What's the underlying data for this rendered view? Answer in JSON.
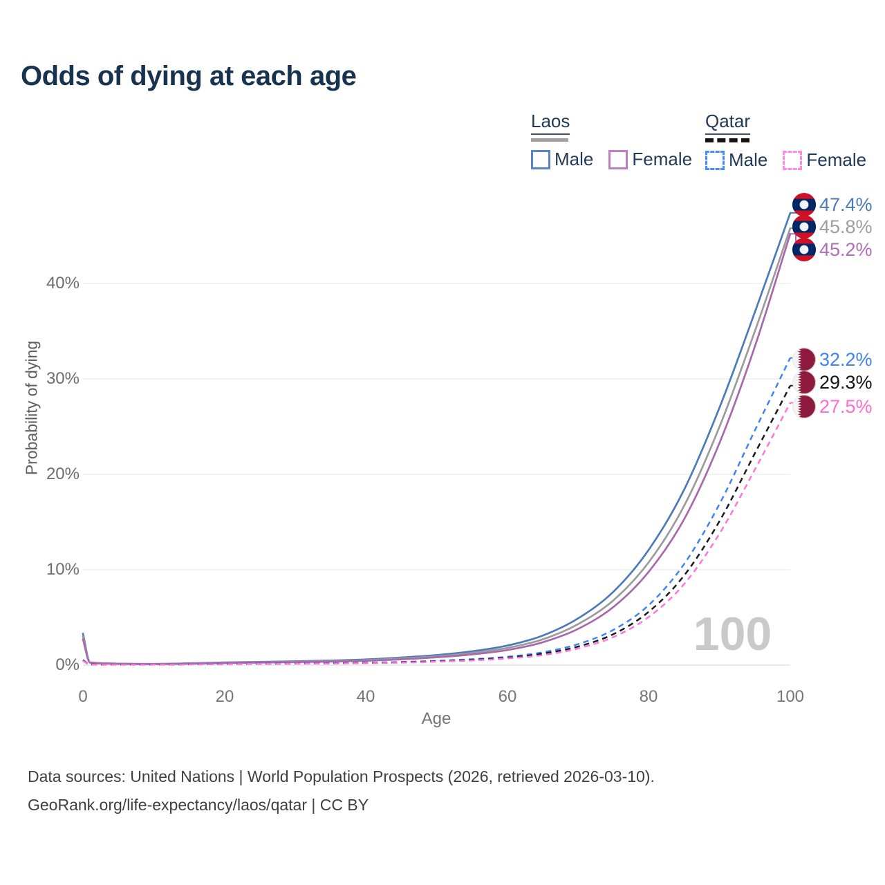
{
  "title": "Odds of dying at each age",
  "legend": {
    "groups": [
      {
        "country": "Laos",
        "line_style": "solid",
        "line_sample_color": "#a0a0a0",
        "items": [
          {
            "label": "Male",
            "color": "#5b84c4"
          },
          {
            "label": "Female",
            "color": "#bb7fc0"
          }
        ]
      },
      {
        "country": "Qatar",
        "line_style": "dashed",
        "line_sample_color": "#141414",
        "items": [
          {
            "label": "Male",
            "color": "#4a8cf7"
          },
          {
            "label": "Female",
            "color": "#ff8ae2"
          }
        ]
      }
    ]
  },
  "chart_data": {
    "type": "line",
    "title": "Odds of dying at each age",
    "xlabel": "Age",
    "ylabel": "Probability of dying",
    "x_ticks": [
      "0",
      "20",
      "40",
      "60",
      "80",
      "100"
    ],
    "y_ticks": [
      "0%",
      "10%",
      "20%",
      "30%",
      "40%"
    ],
    "xlim": [
      0,
      100
    ],
    "ylim": [
      0,
      47.4
    ],
    "grid": "horizontal",
    "watermark": "100",
    "legend_position": "top-right",
    "series": [
      {
        "name": "Laos Male",
        "country": "Laos",
        "sex": "male",
        "style": "solid",
        "dashed": false,
        "color": "#4a7ab8",
        "x": [
          0,
          1,
          5,
          10,
          15,
          20,
          25,
          30,
          35,
          40,
          45,
          50,
          55,
          60,
          65,
          70,
          75,
          80,
          85,
          90,
          95,
          100
        ],
        "values": [
          3.3,
          0.3,
          0.16,
          0.13,
          0.19,
          0.28,
          0.34,
          0.4,
          0.48,
          0.6,
          0.8,
          1.05,
          1.45,
          2.05,
          3.1,
          4.9,
          7.7,
          12.1,
          18.4,
          27.0,
          37.0,
          47.4
        ]
      },
      {
        "name": "Laos",
        "country": "Laos",
        "sex": "both",
        "style": "solid",
        "dashed": false,
        "color": "#9b9b9b",
        "x": [
          0,
          1,
          5,
          10,
          15,
          20,
          25,
          30,
          35,
          40,
          45,
          50,
          55,
          60,
          65,
          70,
          75,
          80,
          85,
          90,
          95,
          100
        ],
        "values": [
          3.0,
          0.28,
          0.15,
          0.12,
          0.17,
          0.25,
          0.3,
          0.35,
          0.42,
          0.52,
          0.7,
          0.92,
          1.28,
          1.8,
          2.7,
          4.3,
          6.8,
          10.8,
          16.7,
          25.0,
          35.0,
          45.8
        ]
      },
      {
        "name": "Laos Female",
        "country": "Laos",
        "sex": "female",
        "style": "solid",
        "dashed": false,
        "color": "#a868ac",
        "x": [
          0,
          1,
          5,
          10,
          15,
          20,
          25,
          30,
          35,
          40,
          45,
          50,
          55,
          60,
          65,
          70,
          75,
          80,
          85,
          90,
          95,
          100
        ],
        "values": [
          2.7,
          0.26,
          0.14,
          0.11,
          0.15,
          0.22,
          0.26,
          0.31,
          0.37,
          0.46,
          0.6,
          0.82,
          1.12,
          1.58,
          2.4,
          3.8,
          6.1,
          9.8,
          15.3,
          23.3,
          33.4,
          45.2
        ]
      },
      {
        "name": "Qatar Male",
        "country": "Qatar",
        "sex": "male",
        "style": "dashed",
        "dashed": true,
        "color": "#3d85f5",
        "x": [
          0,
          1,
          5,
          10,
          15,
          20,
          25,
          30,
          35,
          40,
          45,
          50,
          55,
          60,
          65,
          70,
          75,
          80,
          85,
          90,
          95,
          100
        ],
        "values": [
          0.55,
          0.08,
          0.05,
          0.06,
          0.1,
          0.14,
          0.16,
          0.18,
          0.21,
          0.26,
          0.33,
          0.45,
          0.62,
          0.88,
          1.35,
          2.2,
          3.7,
          6.3,
          10.6,
          16.9,
          24.6,
          32.2
        ]
      },
      {
        "name": "Qatar",
        "country": "Qatar",
        "sex": "both",
        "style": "dashed",
        "dashed": true,
        "color": "#1a1a1a",
        "x": [
          0,
          1,
          5,
          10,
          15,
          20,
          25,
          30,
          35,
          40,
          45,
          50,
          55,
          60,
          65,
          70,
          75,
          80,
          85,
          90,
          95,
          100
        ],
        "values": [
          0.5,
          0.07,
          0.05,
          0.05,
          0.09,
          0.12,
          0.14,
          0.16,
          0.19,
          0.23,
          0.29,
          0.4,
          0.55,
          0.78,
          1.2,
          1.95,
          3.25,
          5.6,
          9.4,
          15.1,
          22.2,
          29.3
        ]
      },
      {
        "name": "Qatar Female",
        "country": "Qatar",
        "sex": "female",
        "style": "dashed",
        "dashed": true,
        "color": "#ff74dc",
        "x": [
          0,
          1,
          5,
          10,
          15,
          20,
          25,
          30,
          35,
          40,
          45,
          50,
          55,
          60,
          65,
          70,
          75,
          80,
          85,
          90,
          95,
          100
        ],
        "values": [
          0.45,
          0.07,
          0.04,
          0.05,
          0.08,
          0.11,
          0.13,
          0.15,
          0.17,
          0.21,
          0.26,
          0.36,
          0.49,
          0.7,
          1.05,
          1.75,
          2.95,
          5.05,
          8.5,
          13.8,
          20.5,
          27.5
        ]
      }
    ],
    "end_labels": [
      {
        "text": "47.4%",
        "value": 47.4,
        "series": "Laos Male",
        "flag": "laos",
        "color": "#4a7ab8"
      },
      {
        "text": "45.8%",
        "value": 45.8,
        "series": "Laos",
        "flag": "laos",
        "color": "#9e9e9e"
      },
      {
        "text": "45.2%",
        "value": 45.2,
        "series": "Laos Female",
        "flag": "laos",
        "color": "#b06fb4"
      },
      {
        "text": "32.2%",
        "value": 32.2,
        "series": "Qatar Male",
        "flag": "qatar",
        "color": "#3d85f5"
      },
      {
        "text": "29.3%",
        "value": 29.3,
        "series": "Qatar",
        "flag": "qatar",
        "color": "#141414"
      },
      {
        "text": "27.5%",
        "value": 27.5,
        "series": "Qatar Female",
        "flag": "qatar",
        "color": "#ff6ad5"
      }
    ]
  },
  "footer": {
    "line1": "Data sources: United Nations | World Population Prospects (2026, retrieved 2026-03-10).",
    "line2": "GeoRank.org/life-expectancy/laos/qatar | CC BY"
  }
}
